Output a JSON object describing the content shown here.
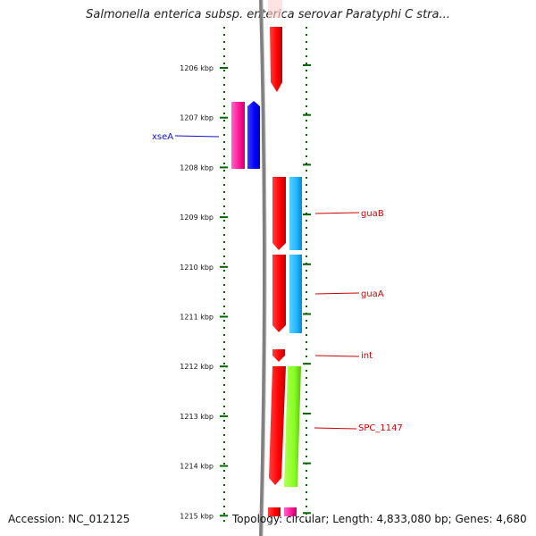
{
  "title": "Salmonella enterica subsp. enterica serovar Paratyphi C stra...",
  "footer": {
    "accession": "Accession: NC_012125",
    "summary": "Topology: circular; Length: 4,833,080 bp; Genes: 4,680"
  },
  "ruler": {
    "labels": [
      "1206 kbp",
      "1207 kbp",
      "1208 kbp",
      "1209 kbp",
      "1210 kbp",
      "1211 kbp",
      "1212 kbp",
      "1213 kbp",
      "1214 kbp",
      "1215 kbp"
    ]
  },
  "genes": [
    {
      "name": "xseA",
      "color": "#1010cc",
      "side": "left"
    },
    {
      "name": "guaB",
      "color": "#cc0000",
      "side": "right"
    },
    {
      "name": "guaA",
      "color": "#cc0000",
      "side": "right"
    },
    {
      "name": "int",
      "color": "#cc0000",
      "side": "right"
    },
    {
      "name": "SPC_1147",
      "color": "#cc0000",
      "side": "right"
    }
  ],
  "colors": {
    "cds_forward": "#ff0000",
    "cds_reverse": "#ff1493",
    "blue_feature": "#0000ff",
    "cyan_feature": "#1eb4ff",
    "green_feature": "#88ff22",
    "ticks": "#006400",
    "backbone": "#808080"
  }
}
